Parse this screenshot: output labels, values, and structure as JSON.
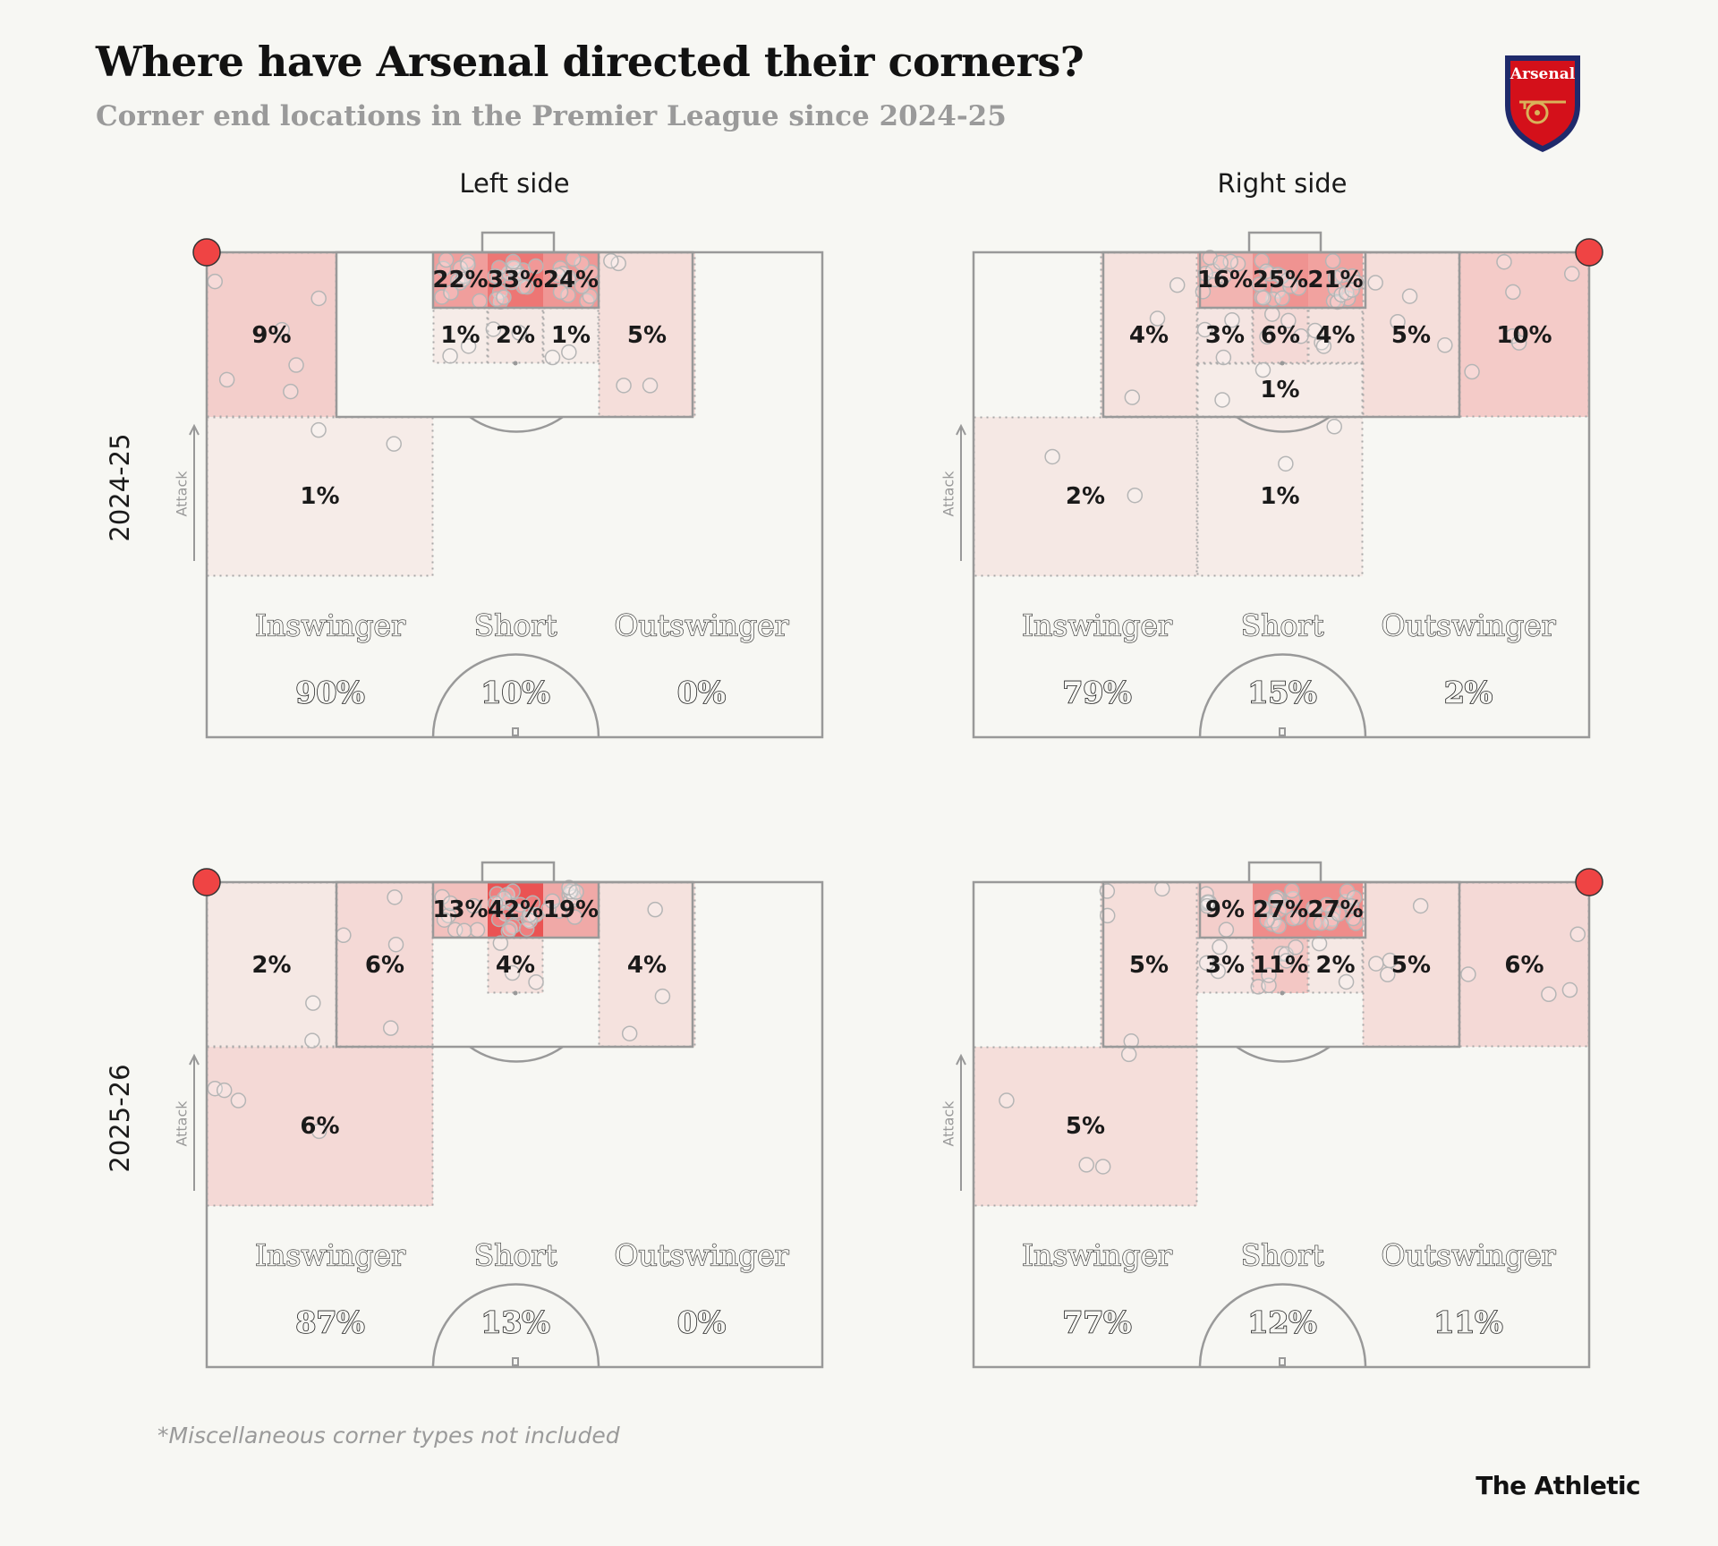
{
  "header": {
    "title": "Where have Arsenal directed their corners?",
    "subtitle": "Corner end locations in the Premier League since 2024-25"
  },
  "logo": {
    "club": "Arsenal",
    "icon": "arsenal-crest-icon"
  },
  "footer": {
    "footnote": "*Miscellaneous corner types not included",
    "brand": "The Athletic"
  },
  "colors": {
    "background": "#f7f7f3",
    "pitch_line": "#999999",
    "heat": "#e83c3c",
    "corner_marker": "#ef4444",
    "text": "#1a1a1a"
  },
  "chart_data": {
    "type": "heatmap",
    "title": "Where have Arsenal directed their corners?",
    "subtitle": "Corner end locations in the Premier League since 2024-25",
    "columns": [
      "Left side",
      "Right side"
    ],
    "rows": [
      "2024-25",
      "2025-26"
    ],
    "direction_label": "Attack",
    "type_labels": [
      "Inswinger",
      "Short",
      "Outswinger"
    ],
    "panels": [
      {
        "season": "2024-25",
        "side": "Left side",
        "type_shares": {
          "Inswinger": "90%",
          "Short": "10%",
          "Outswinger": "0%"
        },
        "zones": {
          "six_yard_near": "22%",
          "six_yard_central": "33%",
          "six_yard_far": "24%",
          "penalty_spot_near": "1%",
          "penalty_spot_central": "2%",
          "penalty_spot_far": "1%",
          "corner_area": "9%",
          "far_post_area": "5%",
          "edge_of_box": "1%"
        }
      },
      {
        "season": "2024-25",
        "side": "Right side",
        "type_shares": {
          "Inswinger": "79%",
          "Short": "15%",
          "Outswinger": "2%"
        },
        "zones": {
          "six_yard_far": "16%",
          "six_yard_central": "25%",
          "six_yard_near": "21%",
          "penalty_spot_far": "3%",
          "penalty_spot_central": "6%",
          "penalty_spot_near": "4%",
          "far_post_area": "4%",
          "near_post_area": "5%",
          "corner_area": "10%",
          "central_box": "1%",
          "central_zone": "1%",
          "outside_box": "2%"
        }
      },
      {
        "season": "2025-26",
        "side": "Left side",
        "type_shares": {
          "Inswinger": "87%",
          "Short": "13%",
          "Outswinger": "0%"
        },
        "zones": {
          "six_yard_near": "13%",
          "six_yard_central": "42%",
          "six_yard_far": "19%",
          "penalty_spot_central": "4%",
          "corner_area": "2%",
          "near_post_area": "6%",
          "far_post_area": "4%",
          "edge_of_box": "6%"
        }
      },
      {
        "season": "2025-26",
        "side": "Right side",
        "type_shares": {
          "Inswinger": "77%",
          "Short": "12%",
          "Outswinger": "11%"
        },
        "zones": {
          "six_yard_far": "9%",
          "six_yard_central": "27%",
          "six_yard_near": "27%",
          "penalty_spot_far": "3%",
          "penalty_spot_central": "11%",
          "penalty_spot_near": "2%",
          "far_post_area": "5%",
          "near_post_area": "5%",
          "corner_area": "6%",
          "outside_box": "5%"
        }
      }
    ]
  }
}
